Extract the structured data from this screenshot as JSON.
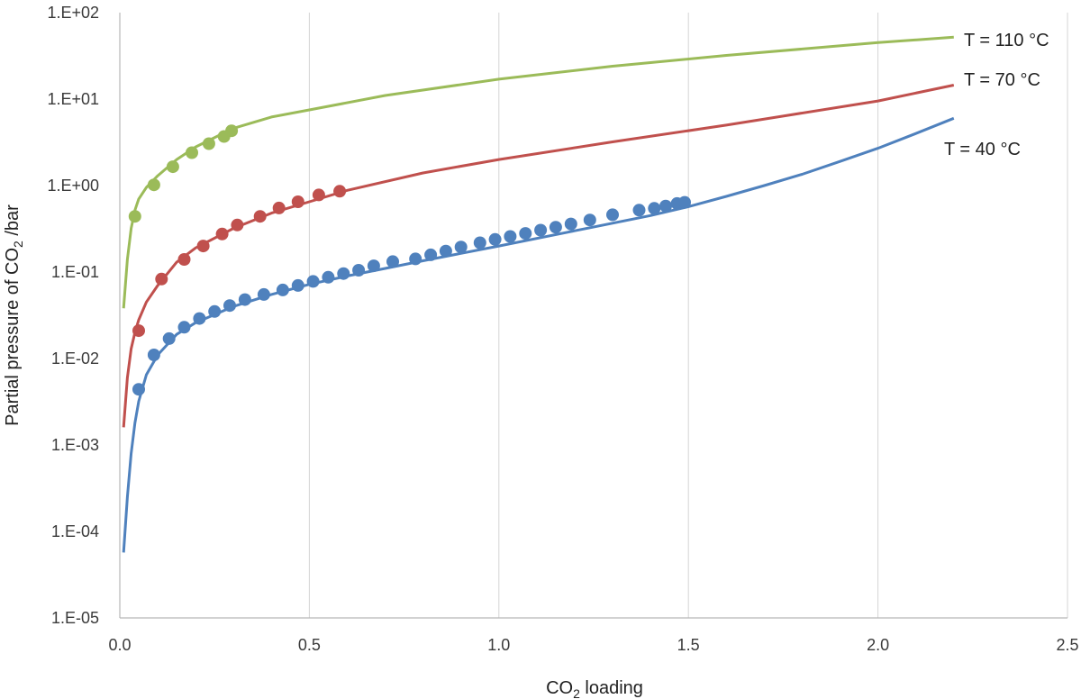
{
  "chart_data": {
    "type": "scatter",
    "title": "",
    "xlabel": "CO2 loading",
    "xlabel_main": "CO",
    "xlabel_sub": "2",
    "xlabel_rest": " loading",
    "ylabel": "Partial pressure of CO2 /bar",
    "ylabel_pre": "Partial pressure of CO",
    "ylabel_sub": "2",
    "ylabel_post": " /bar",
    "xlim": [
      0,
      2.5
    ],
    "ylim": [
      1e-05,
      100
    ],
    "yscale": "log",
    "grid": "vertical",
    "x_ticks": [
      "0.0",
      "0.5",
      "1.0",
      "1.5",
      "2.0",
      "2.5"
    ],
    "y_ticks": [
      "1.E-05",
      "1.E-04",
      "1.E-03",
      "1.E-02",
      "1.E-01",
      "1.E+00",
      "1.E+01",
      "1.E+02"
    ],
    "series": [
      {
        "name": "T = 110 °C",
        "color": "#9bbb59",
        "line": {
          "x": [
            0.01,
            0.02,
            0.03,
            0.04,
            0.05,
            0.07,
            0.1,
            0.15,
            0.2,
            0.3,
            0.4,
            0.5,
            0.7,
            1.0,
            1.3,
            1.6,
            2.0,
            2.2
          ],
          "y": [
            0.038,
            0.14,
            0.32,
            0.52,
            0.7,
            0.95,
            1.3,
            2.0,
            2.8,
            4.6,
            6.2,
            7.5,
            11.0,
            17.0,
            24.0,
            32.0,
            45.0,
            52.0
          ]
        },
        "points": {
          "x": [
            0.04,
            0.09,
            0.14,
            0.19,
            0.235,
            0.275,
            0.295
          ],
          "y": [
            0.44,
            1.02,
            1.65,
            2.4,
            3.05,
            3.7,
            4.3
          ]
        }
      },
      {
        "name": "T = 70 °C",
        "color": "#c0504d",
        "line": {
          "x": [
            0.01,
            0.02,
            0.03,
            0.04,
            0.05,
            0.07,
            0.1,
            0.15,
            0.2,
            0.3,
            0.4,
            0.5,
            0.6,
            0.8,
            1.0,
            1.3,
            1.6,
            2.0,
            2.2
          ],
          "y": [
            0.0016,
            0.006,
            0.013,
            0.02,
            0.028,
            0.045,
            0.07,
            0.13,
            0.19,
            0.32,
            0.48,
            0.65,
            0.88,
            1.4,
            2.0,
            3.2,
            5.0,
            9.5,
            14.5
          ]
        },
        "points": {
          "x": [
            0.05,
            0.11,
            0.17,
            0.22,
            0.27,
            0.31,
            0.37,
            0.42,
            0.47,
            0.525,
            0.58
          ],
          "y": [
            0.021,
            0.083,
            0.14,
            0.2,
            0.275,
            0.35,
            0.44,
            0.55,
            0.65,
            0.78,
            0.86
          ]
        }
      },
      {
        "name": "T = 40 °C",
        "color": "#4f81bd",
        "line": {
          "x": [
            0.01,
            0.02,
            0.03,
            0.04,
            0.05,
            0.07,
            0.1,
            0.15,
            0.2,
            0.3,
            0.4,
            0.5,
            0.6,
            0.7,
            0.8,
            1.0,
            1.2,
            1.4,
            1.5,
            1.6,
            1.7,
            1.8,
            1.9,
            2.0,
            2.1,
            2.2
          ],
          "y": [
            5.7e-05,
            0.00025,
            0.0008,
            0.0018,
            0.0032,
            0.0065,
            0.011,
            0.019,
            0.026,
            0.04,
            0.055,
            0.072,
            0.09,
            0.11,
            0.135,
            0.2,
            0.3,
            0.45,
            0.57,
            0.75,
            1.0,
            1.35,
            1.9,
            2.7,
            4.0,
            6.0
          ]
        },
        "points": {
          "x": [
            0.05,
            0.09,
            0.13,
            0.17,
            0.21,
            0.25,
            0.29,
            0.33,
            0.38,
            0.43,
            0.47,
            0.51,
            0.55,
            0.59,
            0.63,
            0.67,
            0.72,
            0.78,
            0.82,
            0.86,
            0.9,
            0.95,
            0.99,
            1.03,
            1.07,
            1.11,
            1.15,
            1.19,
            1.24,
            1.3,
            1.37,
            1.41,
            1.44,
            1.47,
            1.49
          ],
          "y": [
            0.0044,
            0.011,
            0.017,
            0.023,
            0.029,
            0.035,
            0.041,
            0.048,
            0.055,
            0.062,
            0.07,
            0.078,
            0.087,
            0.096,
            0.105,
            0.118,
            0.132,
            0.142,
            0.158,
            0.175,
            0.195,
            0.218,
            0.238,
            0.258,
            0.28,
            0.305,
            0.33,
            0.36,
            0.4,
            0.46,
            0.52,
            0.545,
            0.58,
            0.62,
            0.64
          ]
        }
      }
    ]
  }
}
